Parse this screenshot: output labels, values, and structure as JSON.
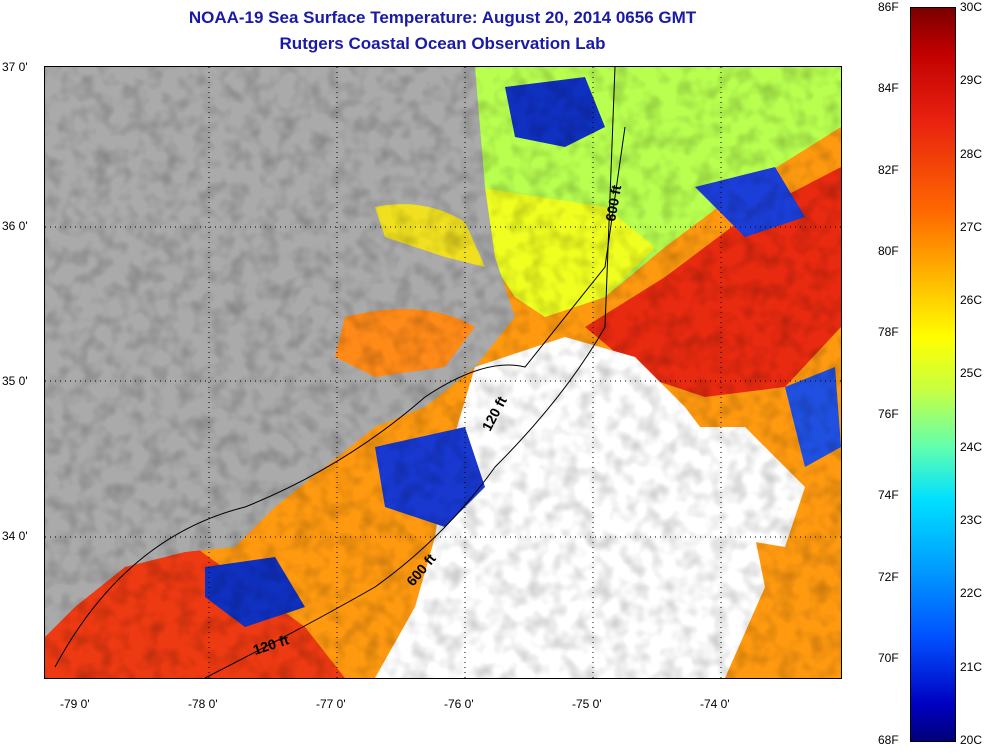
{
  "header": {
    "title": "NOAA-19 Sea Surface Temperature:  August 20, 2014 0656 GMT",
    "subtitle": "Rutgers Coastal Ocean Observation Lab"
  },
  "map": {
    "lat_labels": [
      "37 0'",
      "36 0'",
      "35 0'",
      "34 0'"
    ],
    "lon_labels": [
      "-79 0'",
      "-78 0'",
      "-77 0'",
      "-76 0'",
      "-75 0'",
      "-74 0'"
    ],
    "isobaths": [
      "600 ft",
      "120 ft",
      "600 ft",
      "120 ft"
    ],
    "colors": {
      "land": "#aaaaaa",
      "cloud": "#ffffff",
      "title": "#1a1aa8"
    }
  },
  "colorbar": {
    "fahrenheit": [
      "86F",
      "84F",
      "82F",
      "80F",
      "78F",
      "76F",
      "74F",
      "72F",
      "70F",
      "68F"
    ],
    "celsius": [
      "30C",
      "29C",
      "28C",
      "27C",
      "26C",
      "25C",
      "24C",
      "23C",
      "22C",
      "21C",
      "20C"
    ]
  }
}
